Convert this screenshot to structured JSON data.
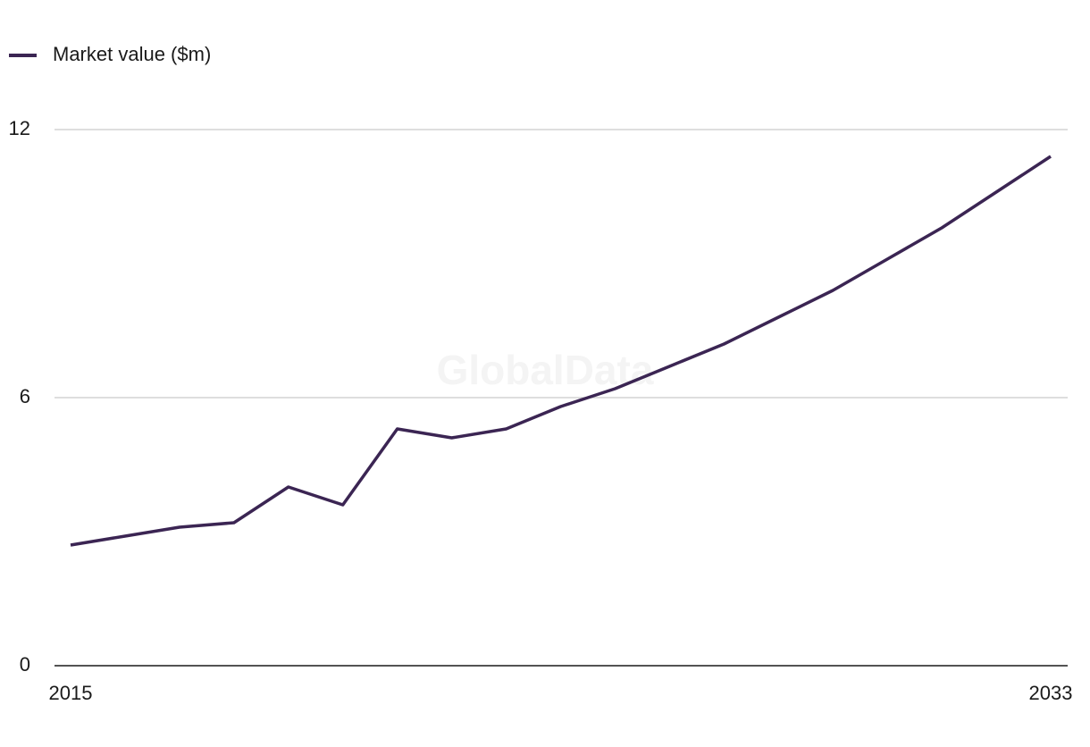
{
  "chart_data": {
    "type": "line",
    "legend_position": "top-left",
    "watermark": "GlobalData",
    "x": [
      2015,
      2016,
      2017,
      2018,
      2019,
      2020,
      2021,
      2022,
      2023,
      2024,
      2025,
      2026,
      2027,
      2028,
      2029,
      2030,
      2031,
      2032,
      2033
    ],
    "series": [
      {
        "name": "Market value ($m)",
        "color": "#3b2553",
        "values": [
          2.7,
          2.9,
          3.1,
          3.2,
          4.0,
          3.6,
          5.3,
          5.1,
          5.3,
          5.8,
          6.2,
          6.7,
          7.2,
          7.8,
          8.4,
          9.1,
          9.8,
          10.6,
          11.4
        ]
      }
    ],
    "xlim": [
      2015,
      2033
    ],
    "xticks": [
      2015,
      2033
    ],
    "ylim": [
      0,
      12
    ],
    "yticks": [
      0,
      6,
      12
    ],
    "grid": true
  }
}
